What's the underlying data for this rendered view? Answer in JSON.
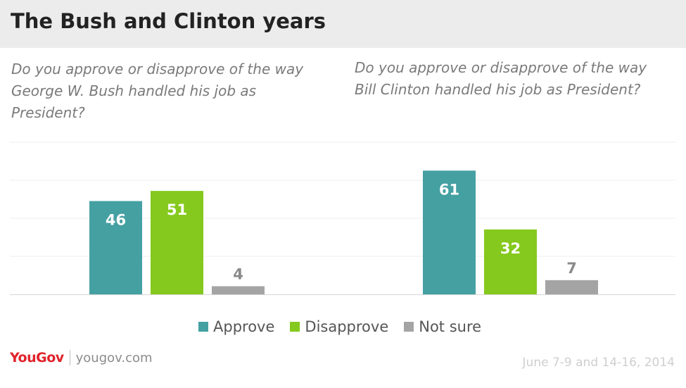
{
  "header": {
    "title": "The Bush and Clinton years"
  },
  "colors": {
    "approve": "#45a0a2",
    "disapprove": "#85c91e",
    "not_sure": "#a4a4a4",
    "header_bg": "#ececec",
    "logo_red": "#e0232b"
  },
  "chart_data": [
    {
      "type": "bar",
      "title": "Do you approve or disapprove of the way George W. Bush handled his job as President?",
      "categories": [
        "Approve",
        "Disapprove",
        "Not sure"
      ],
      "values": [
        46,
        51,
        4
      ],
      "ylim": [
        0,
        75
      ],
      "grid": true
    },
    {
      "type": "bar",
      "title": "Do you approve or disapprove of the way Bill Clinton handled his job as President?",
      "categories": [
        "Approve",
        "Disapprove",
        "Not sure"
      ],
      "values": [
        61,
        32,
        7
      ],
      "ylim": [
        0,
        75
      ],
      "grid": true
    }
  ],
  "legend": {
    "placement": "bottom-center",
    "items": [
      {
        "label": "Approve",
        "color": "#45a0a2"
      },
      {
        "label": "Disapprove",
        "color": "#85c91e"
      },
      {
        "label": "Not sure",
        "color": "#a4a4a4"
      }
    ]
  },
  "footer": {
    "logo": "YouGov",
    "url": "yougov.com",
    "date": "June 7-9 and 14-16, 2014"
  }
}
